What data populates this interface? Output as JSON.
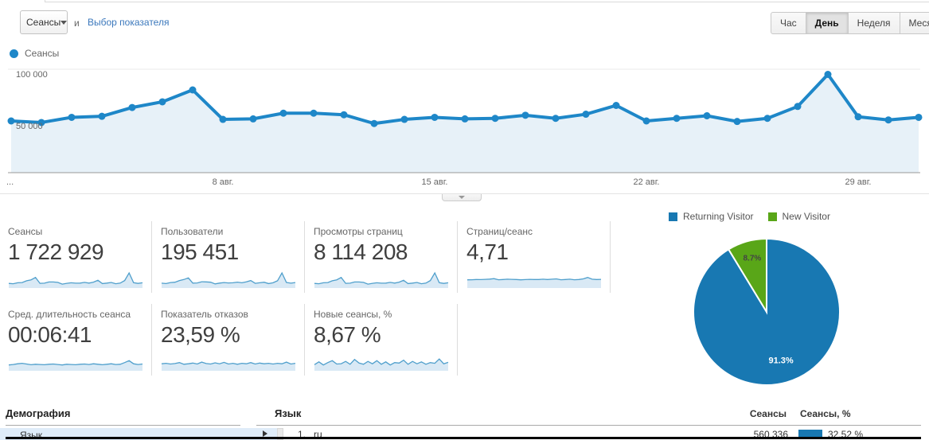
{
  "colors": {
    "chart_blue": "#1e87c8",
    "area_fill": "#e7f1f8",
    "spark_line": "#4f9fcc",
    "spark_fill": "#d9e9f5",
    "pie_blue": "#1878b2",
    "pie_green": "#59a618",
    "link_blue": "#3b78bc"
  },
  "metric_selector": {
    "value": "Сеансы",
    "conjunction": "и",
    "link_label": "Выбор показателя"
  },
  "granularity": {
    "options": [
      "Час",
      "День",
      "Неделя",
      "Месяц"
    ],
    "active_index": 1
  },
  "chart_legend": {
    "label": "Сеансы"
  },
  "chart_data": [
    {
      "type": "line",
      "series": [
        {
          "name": "Сеансы",
          "values": [
            50000,
            48500,
            53500,
            54500,
            63000,
            68500,
            80000,
            51500,
            52000,
            57500,
            57500,
            56000,
            47500,
            51500,
            53500,
            52000,
            52500,
            55500,
            52500,
            56500,
            65000,
            50000,
            52500,
            55000,
            49500,
            52500,
            64000,
            95000,
            54000,
            51000,
            53500
          ]
        }
      ],
      "x_ticks": [
        {
          "index": 0,
          "label": "..."
        },
        {
          "index": 7,
          "label": "8 авг."
        },
        {
          "index": 14,
          "label": "15 авг."
        },
        {
          "index": 21,
          "label": "22 авг."
        },
        {
          "index": 28,
          "label": "29 авг."
        }
      ],
      "y_ticks": [
        {
          "value": 100000,
          "label": "100 000"
        },
        {
          "value": 50000,
          "label": "50 000"
        }
      ],
      "ylim": [
        0,
        105000
      ],
      "grid": true,
      "legend_position": "top-left"
    },
    {
      "type": "pie",
      "legend": [
        "Returning Visitor",
        "New Visitor"
      ],
      "values": [
        91.3,
        8.7
      ],
      "labels": [
        "91.3%",
        "8.7%"
      ],
      "colors": [
        "#1878b2",
        "#59a618"
      ],
      "label_colors": [
        "#ffffff",
        "#444444"
      ]
    }
  ],
  "cards": [
    {
      "label": "Сеансы",
      "value": "1 722 929",
      "spark": [
        12,
        9,
        17,
        19,
        34,
        42,
        62,
        13,
        14,
        24,
        24,
        21,
        6,
        13,
        17,
        14,
        15,
        21,
        15,
        23,
        38,
        11,
        15,
        20,
        9,
        15,
        36,
        100,
        18,
        12,
        17
      ]
    },
    {
      "label": "Пользователи",
      "value": "195 451",
      "spark": [
        14,
        11,
        19,
        22,
        36,
        45,
        58,
        15,
        16,
        26,
        25,
        22,
        8,
        15,
        19,
        16,
        17,
        23,
        17,
        25,
        36,
        13,
        17,
        22,
        11,
        17,
        34,
        100,
        20,
        14,
        19
      ]
    },
    {
      "label": "Просмотры страниц",
      "value": "8 114 208",
      "spark": [
        12,
        9,
        17,
        19,
        34,
        42,
        62,
        13,
        14,
        24,
        24,
        21,
        6,
        13,
        17,
        14,
        15,
        21,
        15,
        23,
        38,
        11,
        15,
        20,
        9,
        15,
        36,
        100,
        18,
        12,
        17
      ]
    },
    {
      "label": "Страниц/сеанс",
      "value": "4,71",
      "spark": [
        42,
        43,
        45,
        44,
        46,
        48,
        52,
        43,
        45,
        47,
        46,
        45,
        42,
        44,
        46,
        45,
        45,
        47,
        45,
        47,
        50,
        43,
        45,
        47,
        43,
        45,
        50,
        62,
        47,
        45,
        46
      ]
    },
    {
      "label": "Сред. длительность сеанса",
      "value": "00:06:41",
      "spark": [
        22,
        26,
        32,
        36,
        30,
        24,
        28,
        26,
        24,
        28,
        30,
        26,
        22,
        28,
        26,
        24,
        28,
        30,
        26,
        32,
        28,
        24,
        28,
        32,
        26,
        28,
        42,
        58,
        32,
        26,
        30
      ]
    },
    {
      "label": "Показатель отказов",
      "value": "23,59 %",
      "spark": [
        32,
        36,
        30,
        34,
        42,
        28,
        32,
        38,
        30,
        46,
        34,
        30,
        40,
        32,
        44,
        30,
        36,
        28,
        36,
        32,
        42,
        30,
        38,
        32,
        36,
        30,
        36,
        32,
        46,
        30,
        36
      ]
    },
    {
      "label": "Новые сеансы, %",
      "value": "8,67 %",
      "spark": [
        25,
        48,
        22,
        42,
        58,
        30,
        33,
        52,
        28,
        68,
        38,
        28,
        52,
        32,
        58,
        28,
        48,
        22,
        42,
        38,
        62,
        28,
        52,
        32,
        48,
        28,
        42,
        36,
        72,
        32,
        44
      ]
    }
  ],
  "demographics": {
    "heading": "Демография",
    "selected_row": {
      "label": "Язык"
    }
  },
  "language_table": {
    "heading": "Язык",
    "col_sessions": "Сеансы",
    "col_sessions_pct": "Сеансы, %",
    "rows": [
      {
        "rank": "1.",
        "language": "ru",
        "sessions": "560 336",
        "sessions_pct": "32,52 %",
        "bar_pct": 32.52
      }
    ]
  }
}
